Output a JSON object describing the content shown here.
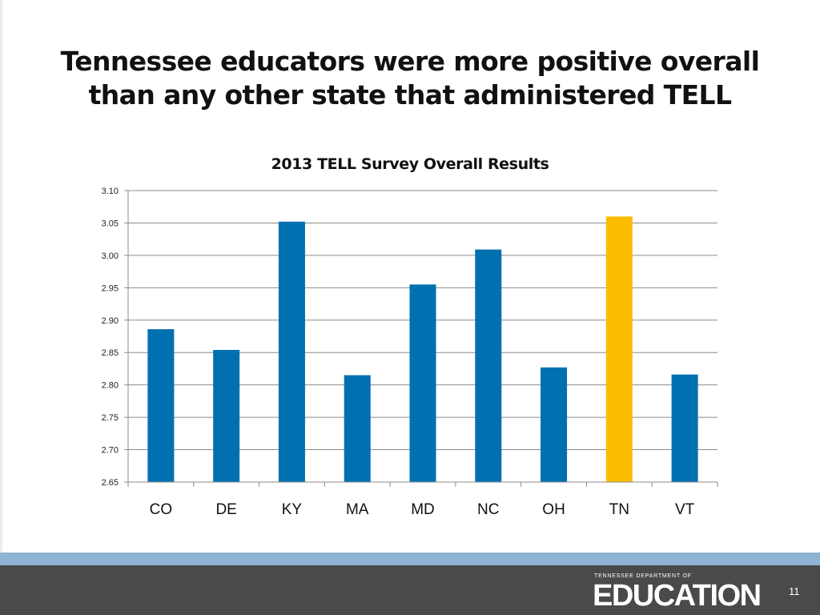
{
  "slide": {
    "title_line1": "Tennessee educators were more positive overall",
    "title_line2": "than any other state that administered TELL",
    "page_number": "11"
  },
  "footer": {
    "logo_small": "TENNESSEE DEPARTMENT OF",
    "logo_big": "EDUCATION"
  },
  "chart_data": {
    "type": "bar",
    "title": "2013 TELL Survey Overall Results",
    "categories": [
      "CO",
      "DE",
      "KY",
      "MA",
      "MD",
      "NC",
      "OH",
      "TN",
      "VT"
    ],
    "values": [
      2.886,
      2.854,
      3.052,
      2.815,
      2.955,
      3.009,
      2.827,
      3.06,
      2.816
    ],
    "ylim": [
      2.65,
      3.1
    ],
    "yticks": [
      "2.65",
      "2.70",
      "2.75",
      "2.80",
      "2.85",
      "2.90",
      "2.95",
      "3.00",
      "3.05",
      "3.10"
    ],
    "grid": true,
    "legend": "none",
    "colors": {
      "default_bar": "#0070b0",
      "highlight_bar": "#fcbc00",
      "grid": "#8c8c8c"
    },
    "highlight_category": "TN"
  }
}
